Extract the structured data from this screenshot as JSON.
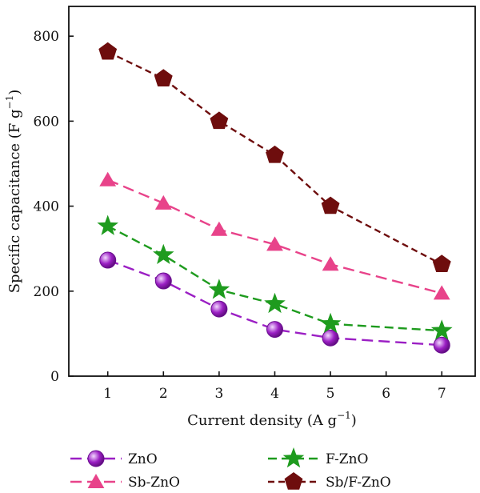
{
  "chart_data": {
    "type": "line",
    "xlabel": "Current density (A g",
    "xlabel_sup": "−1",
    "xlabel_end": ")",
    "ylabel": "Specific capacitance (F g",
    "ylabel_sup": "−1",
    "ylabel_end": ")",
    "x_ticks": [
      1,
      2,
      3,
      4,
      5,
      6,
      7
    ],
    "y_ticks": [
      0,
      200,
      400,
      600,
      800
    ],
    "xlim": [
      0.3,
      7.6
    ],
    "ylim": [
      0,
      870
    ],
    "grid": false,
    "legend_position": "bottom",
    "series": [
      {
        "name": "ZnO",
        "color": "#9b1fc4",
        "marker": "circle",
        "dash": "long",
        "x": [
          1,
          2,
          3,
          4,
          5,
          7
        ],
        "y": [
          273,
          224,
          158,
          110,
          90,
          73
        ]
      },
      {
        "name": "Sb-ZnO",
        "color": "#e8438a",
        "marker": "triangle",
        "dash": "long",
        "x": [
          1,
          2,
          3,
          4,
          5,
          7
        ],
        "y": [
          462,
          407,
          345,
          310,
          263,
          195
        ]
      },
      {
        "name": "F-ZnO",
        "color": "#1e9b1e",
        "marker": "star",
        "dash": "medium",
        "x": [
          1,
          2,
          3,
          4,
          5,
          7
        ],
        "y": [
          353,
          285,
          203,
          170,
          123,
          107
        ]
      },
      {
        "name": "Sb/F-ZnO",
        "color": "#6e0d0d",
        "marker": "pentagon",
        "dash": "short",
        "x": [
          1,
          2,
          3,
          4,
          5,
          7
        ],
        "y": [
          763,
          700,
          600,
          520,
          400,
          263
        ]
      }
    ]
  }
}
